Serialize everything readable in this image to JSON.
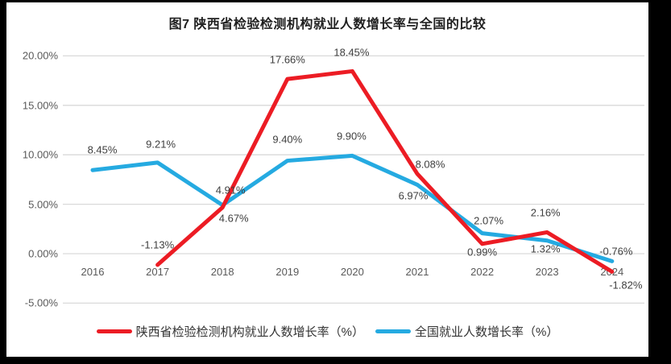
{
  "window": {
    "frame_color": "#000000",
    "background_color": "#ffffff"
  },
  "chart_data": {
    "type": "line",
    "title": "图7 陕西省检验检测机构就业人数增长率与全国的比较",
    "categories": [
      "2016",
      "2017",
      "2018",
      "2019",
      "2020",
      "2021",
      "2022",
      "2023",
      "2024"
    ],
    "series": [
      {
        "id": "shaanxi",
        "name": "陕西省检验检测机构就业人数增长率（%）",
        "color": "#ec1c24",
        "values": [
          null,
          -1.13,
          4.67,
          17.66,
          18.45,
          8.08,
          0.99,
          2.16,
          -1.82
        ],
        "labels": [
          "",
          "-1.13%",
          "4.67%",
          "17.66%",
          "18.45%",
          "8.08%",
          "0.99%",
          "2.16%",
          "-1.82%"
        ],
        "label_offsets": [
          null,
          [
            0,
            -25
          ],
          [
            14,
            13
          ],
          [
            0,
            -24
          ],
          [
            -1,
            -23
          ],
          [
            16,
            -12
          ],
          [
            0,
            10
          ],
          [
            -2,
            -24
          ],
          [
            17,
            17
          ]
        ]
      },
      {
        "id": "national",
        "name": "全国就业人数增长率（%）",
        "color": "#25aae1",
        "values": [
          8.45,
          9.21,
          4.91,
          9.4,
          9.9,
          6.97,
          2.07,
          1.32,
          -0.76
        ],
        "labels": [
          "8.45%",
          "9.21%",
          "4.91%",
          "9.40%",
          "9.90%",
          "6.97%",
          "2.07%",
          "1.32%",
          "-0.76%"
        ],
        "label_offsets": [
          [
            12,
            -25
          ],
          [
            4,
            -23
          ],
          [
            10,
            -19
          ],
          [
            0,
            -27
          ],
          [
            -1,
            -24
          ],
          [
            -5,
            14
          ],
          [
            8,
            -16
          ],
          [
            -2,
            10
          ],
          [
            5,
            -12
          ]
        ]
      }
    ],
    "y_ticks": [
      {
        "label": "20.00%",
        "value": 20
      },
      {
        "label": "15.00%",
        "value": 15
      },
      {
        "label": "10.00%",
        "value": 10
      },
      {
        "label": "5.00%",
        "value": 5
      },
      {
        "label": "0.00%",
        "value": 0
      },
      {
        "label": "-5.00%",
        "value": -5
      }
    ],
    "ylim": [
      -5,
      20
    ],
    "grid": true,
    "legend_position": "bottom",
    "colors": {
      "grid": "#d9d9d9",
      "axis_text": "#595959",
      "label_text": "#3f3f3f",
      "title_text": "#1f1f1f"
    }
  }
}
